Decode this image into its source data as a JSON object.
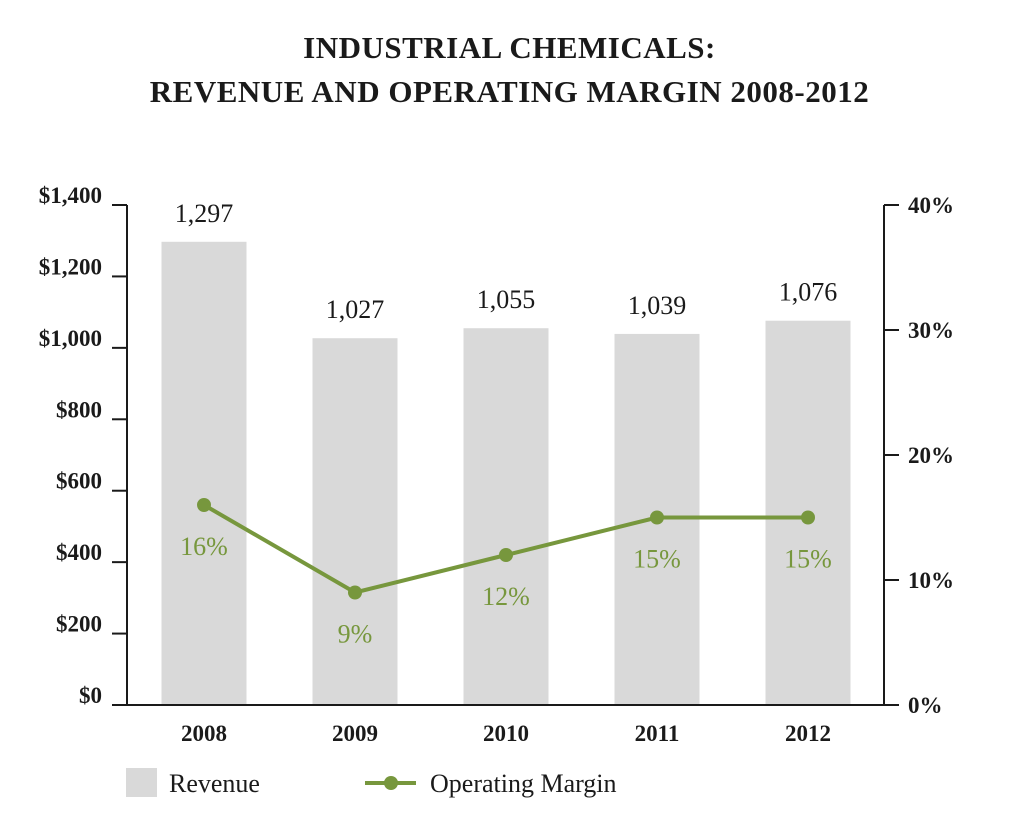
{
  "title_line1": "INDUSTRIAL CHEMICALS:",
  "title_line2": "REVENUE AND OPERATING MARGIN 2008-2012",
  "chart_data": {
    "type": "bar+line",
    "categories": [
      "2008",
      "2009",
      "2010",
      "2011",
      "2012"
    ],
    "series": [
      {
        "name": "Revenue",
        "type": "bar",
        "axis": "left",
        "values": [
          1297,
          1027,
          1055,
          1039,
          1076
        ],
        "labels": [
          "1,297",
          "1,027",
          "1,055",
          "1,039",
          "1,076"
        ],
        "color": "#d9d9d9"
      },
      {
        "name": "Operating Margin",
        "type": "line",
        "axis": "right",
        "values": [
          16,
          9,
          12,
          15,
          15
        ],
        "labels": [
          "16%",
          "9%",
          "12%",
          "15%",
          "15%"
        ],
        "color": "#77973d"
      }
    ],
    "left_axis": {
      "range": [
        0,
        1400
      ],
      "ticks": [
        0,
        200,
        400,
        600,
        800,
        1000,
        1200,
        1400
      ],
      "tick_labels": [
        "$0",
        "$200",
        "$400",
        "$600",
        "$800",
        "$1,000",
        "$1,200",
        "$1,400"
      ]
    },
    "right_axis": {
      "range": [
        0,
        40
      ],
      "ticks": [
        0,
        10,
        20,
        30,
        40
      ],
      "tick_labels": [
        "0%",
        "10%",
        "20%",
        "30%",
        "40%"
      ]
    },
    "grid": false,
    "legend": "bottom-left"
  }
}
